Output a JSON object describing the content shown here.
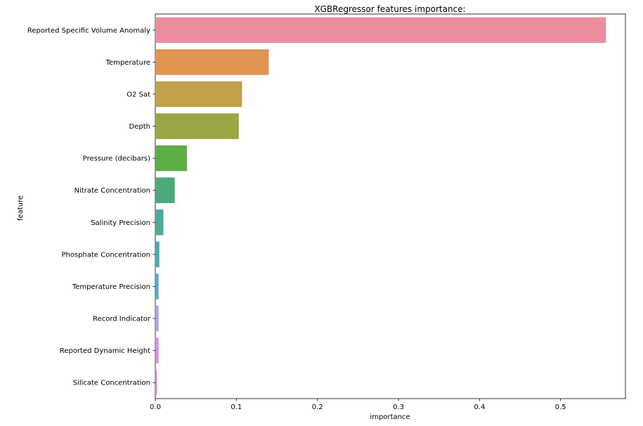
{
  "chart_data": {
    "type": "bar",
    "orientation": "horizontal",
    "title": "XGBRegressor features importance:",
    "xlabel": "importance",
    "ylabel": "feature",
    "xlim": [
      0,
      0.58
    ],
    "xticks": [
      0.0,
      0.1,
      0.2,
      0.3,
      0.4,
      0.5
    ],
    "xtick_labels": [
      "0.0",
      "0.1",
      "0.2",
      "0.3",
      "0.4",
      "0.5"
    ],
    "grid": false,
    "categories": [
      "Reported Specific Volume Anomaly",
      "Temperature",
      "O2 Sat",
      "Depth",
      "Pressure (decibars)",
      "Nitrate Concentration",
      "Salinity Precision",
      "Phosphate Concentration",
      "Temperature Precision",
      "Record Indicator",
      "Reported Dynamic Height",
      "Silicate Concentration"
    ],
    "values": [
      0.556,
      0.14,
      0.107,
      0.103,
      0.039,
      0.024,
      0.01,
      0.005,
      0.004,
      0.004,
      0.004,
      0.002
    ],
    "colors": [
      "#eb8f9e",
      "#e09452",
      "#c3a04a",
      "#9ba543",
      "#5dad46",
      "#49ab7a",
      "#4daa9a",
      "#4fa8b0",
      "#56a6d2",
      "#a8a2e6",
      "#d58be6",
      "#e385c6"
    ]
  }
}
